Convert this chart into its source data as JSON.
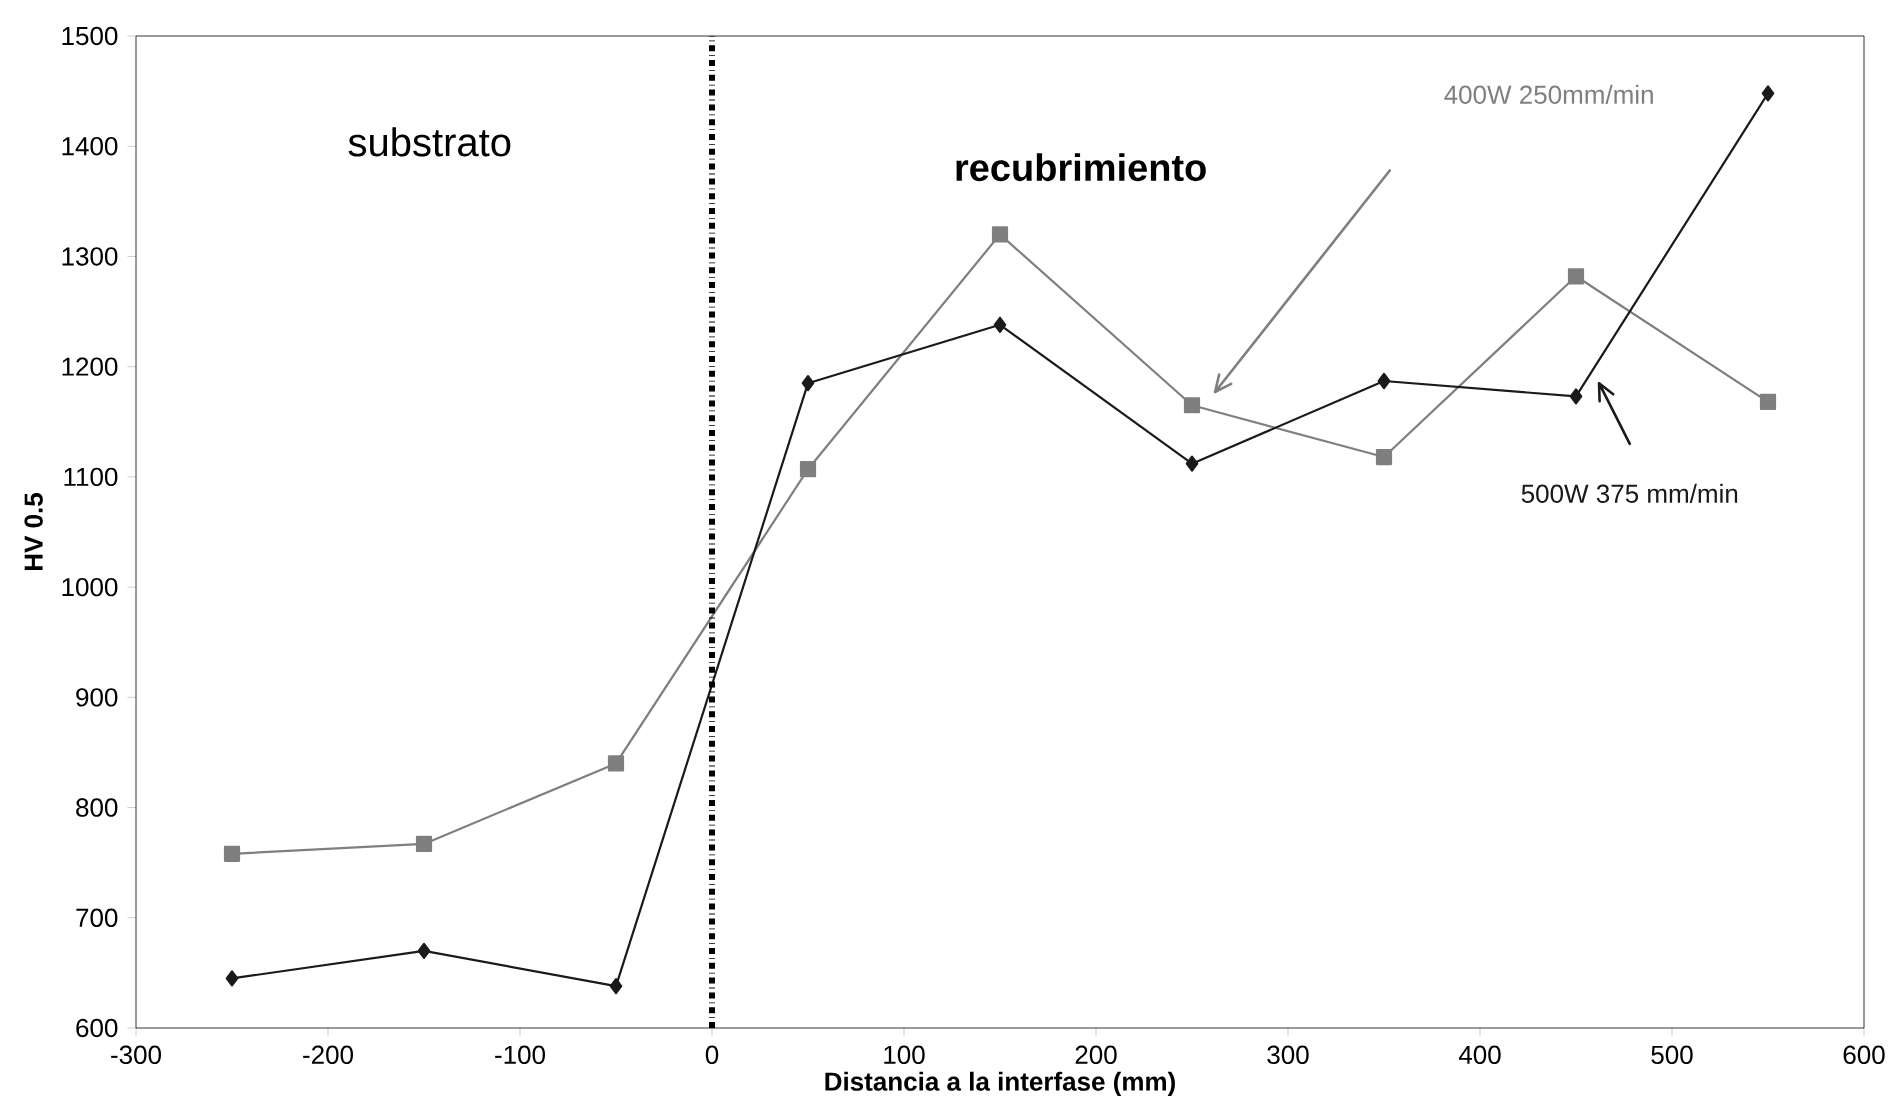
{
  "chart_data": {
    "type": "line",
    "xlabel": "Distancia a la interfase (mm)",
    "ylabel": "HV 0.5",
    "x": [
      -250,
      -150,
      -50,
      50,
      150,
      250,
      350,
      450,
      550
    ],
    "series": [
      {
        "name": "400W 250mm/min",
        "color": "#7f7f7f",
        "marker": "square",
        "values": [
          758,
          767,
          840,
          1107,
          1320,
          1165,
          1118,
          1282,
          1168
        ]
      },
      {
        "name": "500W 375 mm/min",
        "color": "#1a1a1a",
        "marker": "diamond",
        "values": [
          645,
          670,
          638,
          1185,
          1238,
          1112,
          1187,
          1173,
          1448
        ]
      }
    ],
    "annotations": [
      "substrato",
      "recubrimiento"
    ],
    "ref_lines": [
      {
        "axis": "x",
        "value": 0,
        "color": "#000000",
        "line_style": "dashdot"
      }
    ],
    "xlim": [
      -300,
      600
    ],
    "xticks": [
      -300,
      -200,
      -100,
      0,
      100,
      200,
      300,
      400,
      500,
      600
    ],
    "ylim": [
      600,
      1500
    ],
    "yticks": [
      600,
      700,
      800,
      900,
      1000,
      1100,
      1200,
      1300,
      1400,
      1500
    ],
    "grid": false,
    "line_style": "solid"
  }
}
